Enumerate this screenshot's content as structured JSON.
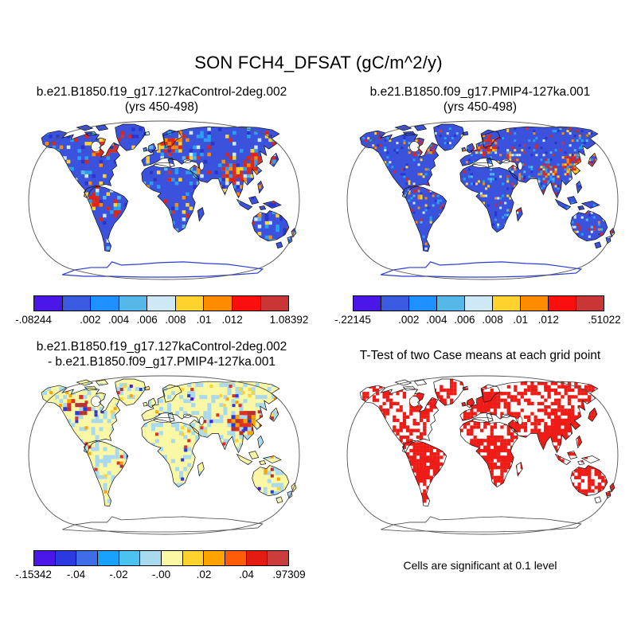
{
  "title": "SON FCH4_DFSAT (gC/m^2/y)",
  "caption": "Cells are significant at 0.1 level",
  "panels": [
    {
      "title1": "b.e21.B1850.f19_g17.127kaControl-2deg.002",
      "title2": "(yrs 450-498)",
      "map": {
        "seed": 11,
        "cell": 4.5,
        "land": "#3a52dc",
        "coast": "#111111",
        "ant_fill": "#ffffff",
        "ant_stroke": "#2a3fd0",
        "ant_width": 1.2,
        "speckles": [
          [
            "#2aa0f0",
            130
          ],
          [
            "#cfe8f6",
            60
          ],
          [
            "#ffd22e",
            55
          ],
          [
            "#ff8c00",
            48
          ],
          [
            "#e02418",
            60
          ],
          [
            "#c93636",
            24
          ],
          [
            "#2a35cf",
            95
          ],
          [
            "#56b8e8",
            40
          ]
        ],
        "hotspots": [
          [
            288,
            55,
            20,
            92
          ],
          [
            175,
            30,
            17,
            55
          ],
          [
            95,
            33,
            15,
            62
          ],
          [
            82,
            100,
            9,
            18
          ],
          [
            255,
            62,
            13,
            30
          ]
        ],
        "hotspot_colors": [
          "#e02418",
          "#e02418",
          "#d42c20",
          "#ff8c00",
          "#ffd22e",
          "#c93636",
          "#2aa0f0"
        ]
      },
      "colorbar": {
        "colors": [
          "#4a17e8",
          "#3a5ae0",
          "#1e90ff",
          "#56b8e8",
          "#cfe8f6",
          "#ffd22e",
          "#ff8c00",
          "#fa0e0e",
          "#c93636"
        ],
        "labels": [
          [
            "-.08244",
            0
          ],
          [
            ".002",
            0.2222
          ],
          [
            ".004",
            0.3333
          ],
          [
            ".006",
            0.4444
          ],
          [
            ".008",
            0.5556
          ],
          [
            ".01",
            0.6667
          ],
          [
            ".012",
            0.7778
          ],
          [
            "1.08392",
            1
          ]
        ]
      }
    },
    {
      "title1": "b.e21.B1850.f09_g17.PMIP4-127ka.001",
      "title2": "(yrs 450-498)",
      "map": {
        "seed": 22,
        "cell": 3,
        "land": "#3a52dc",
        "coast": "#111111",
        "ant_fill": "#ffffff",
        "ant_stroke": "#2a3fd0",
        "ant_width": 1.2,
        "speckles": [
          [
            "#2aa0f0",
            200
          ],
          [
            "#cfe8f6",
            90
          ],
          [
            "#ffd22e",
            85
          ],
          [
            "#ff8c00",
            78
          ],
          [
            "#e02418",
            100
          ],
          [
            "#c93636",
            45
          ],
          [
            "#2a35cf",
            150
          ],
          [
            "#56b8e8",
            60
          ]
        ],
        "hotspots": [
          [
            290,
            55,
            20,
            150
          ],
          [
            172,
            30,
            16,
            82
          ],
          [
            95,
            33,
            15,
            95
          ],
          [
            250,
            62,
            12,
            40
          ]
        ],
        "hotspot_colors": [
          "#e02418",
          "#e02418",
          "#d42c20",
          "#ff8c00",
          "#ffd22e",
          "#c93636",
          "#2aa0f0"
        ]
      },
      "colorbar": {
        "colors": [
          "#4a17e8",
          "#3a5ae0",
          "#1e90ff",
          "#56b8e8",
          "#cfe8f6",
          "#ffd22e",
          "#ff8c00",
          "#fa0e0e",
          "#c93636"
        ],
        "labels": [
          [
            "-.22145",
            0
          ],
          [
            ".002",
            0.2222
          ],
          [
            ".004",
            0.3333
          ],
          [
            ".006",
            0.4444
          ],
          [
            ".008",
            0.5556
          ],
          [
            ".01",
            0.6667
          ],
          [
            ".012",
            0.7778
          ],
          [
            ".51022",
            1
          ]
        ]
      }
    },
    {
      "title1": "b.e21.B1850.f19_g17.127kaControl-2deg.002",
      "title2": "- b.e21.B1850.f09_g17.PMIP4-127ka.001",
      "map": {
        "seed": 33,
        "cell": 5,
        "land": "#fbf8a5",
        "coast": "#111111",
        "ant_fill": "#ffffff",
        "ant_stroke": "#444444",
        "ant_width": 0.8,
        "speckles": [
          [
            "#a9d9ef",
            520
          ],
          [
            "#ffd22e",
            35,
            4
          ],
          [
            "#ffa300",
            28,
            4
          ],
          [
            "#e03020",
            30,
            4
          ],
          [
            "#b53030",
            12,
            4
          ],
          [
            "#2a3ae0",
            22,
            4
          ],
          [
            "#4a17e8",
            10,
            4
          ]
        ],
        "hotspots": [
          [
            272,
            58,
            22,
            62
          ],
          [
            60,
            35,
            16,
            20
          ]
        ],
        "hotspot_colors": [
          "#e03020",
          "#e03020",
          "#b53030",
          "#2a3ae0",
          "#ffa300"
        ]
      },
      "colorbar": {
        "colors": [
          "#4a17e8",
          "#2a3ae0",
          "#3f6de8",
          "#18a2fb",
          "#4cc2f1",
          "#a9d9ef",
          "#fbf8a5",
          "#ffd22e",
          "#ffa300",
          "#ff5c0a",
          "#e31b10",
          "#cb3d3d"
        ],
        "labels": [
          [
            "-.15342",
            0
          ],
          [
            "-.04",
            0.1667
          ],
          [
            "-.02",
            0.3333
          ],
          [
            "-.00",
            0.5
          ],
          [
            ".02",
            0.6667
          ],
          [
            ".04",
            0.8333
          ],
          [
            ".97309",
            1
          ]
        ]
      }
    },
    {
      "title1": "T-Test of two Case means at each grid point",
      "title2": "",
      "map": {
        "seed": 44,
        "cell": 4.2,
        "land": "#ffffff",
        "coast": "#111111",
        "ant_fill": "#ffffff",
        "ant_stroke": "#444444",
        "ant_width": 0.8,
        "speckles": [
          [
            "#ed1c16",
            1600
          ]
        ],
        "hotspots": [
          [
            180,
            95,
            30,
            150
          ],
          [
            90,
            115,
            25,
            120
          ],
          [
            270,
            60,
            25,
            130
          ],
          [
            100,
            35,
            22,
            90
          ],
          [
            170,
            30,
            18,
            80
          ]
        ],
        "hotspot_colors": [
          "#ed1c16"
        ]
      },
      "colorbar": null
    }
  ],
  "chart_data": {
    "type": "heatmap",
    "title": "SON FCH4_DFSAT (gC/m^2/y)",
    "variable": "FCH4_DFSAT",
    "season": "SON",
    "units": "gC/m^2/y",
    "projection": "robinson",
    "panels": [
      {
        "title": "b.e21.B1850.f19_g17.127kaControl-2deg.002",
        "subtitle": "(yrs 450-498)",
        "min": -0.08244,
        "max": 1.08392,
        "levels": [
          0.002,
          0.004,
          0.006,
          0.008,
          0.01,
          0.012
        ],
        "colorbar_labels": [
          "-.08244",
          ".002",
          ".004",
          ".006",
          ".008",
          ".01",
          ".012",
          "1.08392"
        ],
        "colors": [
          "#4a17e8",
          "#3a5ae0",
          "#1e90ff",
          "#56b8e8",
          "#cfe8f6",
          "#ffd22e",
          "#ff8c00",
          "#fa0e0e",
          "#c93636"
        ]
      },
      {
        "title": "b.e21.B1850.f09_g17.PMIP4-127ka.001",
        "subtitle": "(yrs 450-498)",
        "min": -0.22145,
        "max": 0.51022,
        "levels": [
          0.002,
          0.004,
          0.006,
          0.008,
          0.01,
          0.012
        ],
        "colorbar_labels": [
          "-.22145",
          ".002",
          ".004",
          ".006",
          ".008",
          ".01",
          ".012",
          ".51022"
        ],
        "colors": [
          "#4a17e8",
          "#3a5ae0",
          "#1e90ff",
          "#56b8e8",
          "#cfe8f6",
          "#ffd22e",
          "#ff8c00",
          "#fa0e0e",
          "#c93636"
        ]
      },
      {
        "title": "b.e21.B1850.f19_g17.127kaControl-2deg.002 - b.e21.B1850.f09_g17.PMIP4-127ka.001",
        "min": -0.15342,
        "max": 0.97309,
        "levels": [
          -0.04,
          -0.02,
          0.0,
          0.02,
          0.04
        ],
        "colorbar_labels": [
          "-.15342",
          "-.04",
          "-.02",
          "-.00",
          ".02",
          ".04",
          ".97309"
        ],
        "colors": [
          "#4a17e8",
          "#2a3ae0",
          "#3f6de8",
          "#18a2fb",
          "#4cc2f1",
          "#a9d9ef",
          "#fbf8a5",
          "#ffd22e",
          "#ffa300",
          "#ff5c0a",
          "#e31b10",
          "#cb3d3d"
        ]
      },
      {
        "title": "T-Test of two Case means at each grid point",
        "note": "Cells are significant at 0.1 level",
        "significance_level": 0.1,
        "significant_color": "#ed1c16"
      }
    ]
  }
}
